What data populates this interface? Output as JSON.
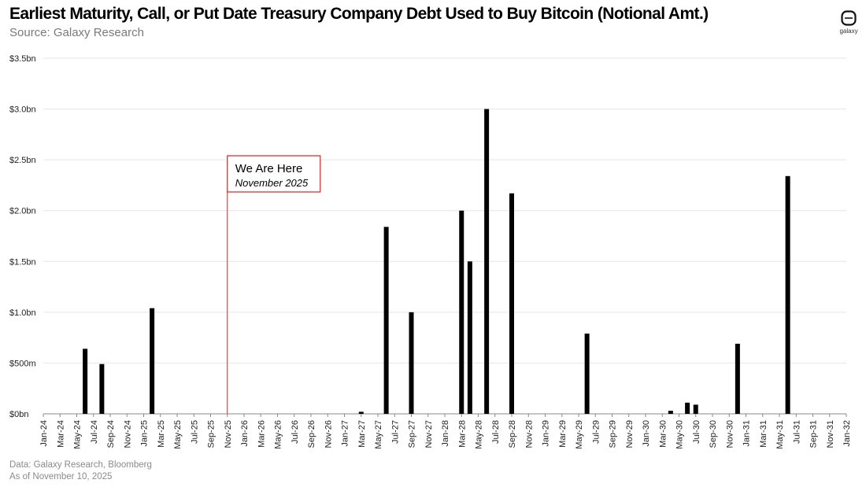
{
  "header": {
    "title": "Earliest Maturity, Call, or Put Date Treasury Company Debt Used to Buy Bitcoin (Notional Amt.)",
    "subtitle": "Source: Galaxy Research"
  },
  "logo": {
    "text": "galaxy"
  },
  "footer": {
    "line1": "Data: Galaxy Research, Bloomberg",
    "line2": "As of November 10, 2025"
  },
  "annotation": {
    "title": "We Are Here",
    "subtitle": "November 2025",
    "color": "#e02020",
    "at_month": "Nov-25"
  },
  "chart_data": {
    "type": "bar",
    "title": "Earliest Maturity, Call, or Put Date Treasury Company Debt Used to Buy Bitcoin (Notional Amt.)",
    "xlabel": "",
    "ylabel": "",
    "ylim": [
      0,
      3.5
    ],
    "yticks": [
      0,
      0.5,
      1.0,
      1.5,
      2.0,
      2.5,
      3.0,
      3.5
    ],
    "ytick_labels": [
      "$0bn",
      "$500m",
      "$1.0bn",
      "$1.5bn",
      "$2.0bn",
      "$2.5bn",
      "$3.0bn",
      "$3.5bn"
    ],
    "x_start": "Jan-24",
    "x_end": "Jan-32",
    "xtick_labels": [
      "Jan-24",
      "Mar-24",
      "May-24",
      "Jul-24",
      "Sep-24",
      "Nov-24",
      "Jan-25",
      "Mar-25",
      "May-25",
      "Jul-25",
      "Sep-25",
      "Nov-25",
      "Jan-26",
      "Mar-26",
      "May-26",
      "Jul-26",
      "Sep-26",
      "Nov-26",
      "Jan-27",
      "Mar-27",
      "May-27",
      "Jul-27",
      "Sep-27",
      "Nov-27",
      "Jan-28",
      "Mar-28",
      "May-28",
      "Jul-28",
      "Sep-28",
      "Nov-28",
      "Jan-29",
      "Mar-29",
      "May-29",
      "Jul-29",
      "Sep-29",
      "Nov-29",
      "Jan-30",
      "Mar-30",
      "May-30",
      "Jul-30",
      "Sep-30",
      "Nov-30",
      "Jan-31",
      "Mar-31",
      "May-31",
      "Jul-31",
      "Sep-31",
      "Nov-31",
      "Jan-32"
    ],
    "units": "USD billions",
    "bars": [
      {
        "date": "Jun-24",
        "value": 0.64
      },
      {
        "date": "Aug-24",
        "value": 0.49
      },
      {
        "date": "Feb-25",
        "value": 1.04
      },
      {
        "date": "Mar-27",
        "value": 0.02
      },
      {
        "date": "Jun-27",
        "value": 1.84
      },
      {
        "date": "Sep-27",
        "value": 1.0
      },
      {
        "date": "Mar-28",
        "value": 2.0
      },
      {
        "date": "Apr-28",
        "value": 1.5
      },
      {
        "date": "Jun-28",
        "value": 3.0
      },
      {
        "date": "Sep-28",
        "value": 2.17
      },
      {
        "date": "Jun-29",
        "value": 0.79
      },
      {
        "date": "Apr-30",
        "value": 0.03
      },
      {
        "date": "Jun-30",
        "value": 0.11
      },
      {
        "date": "Jul-30",
        "value": 0.09
      },
      {
        "date": "Dec-30",
        "value": 0.69
      },
      {
        "date": "Jun-31",
        "value": 2.34
      }
    ],
    "grid": true,
    "legend": "none"
  }
}
